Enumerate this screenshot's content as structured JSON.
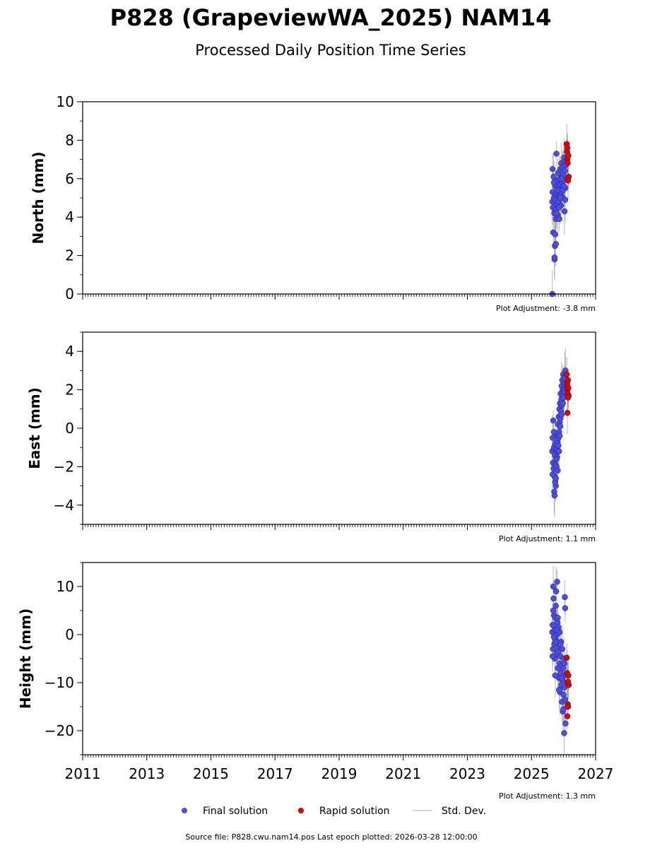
{
  "figure": {
    "title": "P828 (GrapeviewWA_2025) NAM14",
    "subtitle": "Processed Daily Position Time Series",
    "footer": "Source file: P828.cwu.nam14.pos  Last epoch plotted: 2026-03-28 12:00:00"
  },
  "legend": {
    "final_label": "Final solution",
    "rapid_label": "Rapid solution",
    "std_label": "Std. Dev."
  },
  "colors": {
    "final": "#4b4bf0",
    "rapid": "#e00000",
    "std": "#909090"
  },
  "chart_data": [
    {
      "type": "scatter",
      "ylabel": "North (mm)",
      "xlim": [
        2011,
        2027
      ],
      "ylim": [
        0,
        10
      ],
      "x_ticks": [
        2011,
        2013,
        2015,
        2017,
        2019,
        2021,
        2023,
        2025,
        2027
      ],
      "x_tick_labels_shown": false,
      "y_ticks": [
        0,
        2,
        4,
        6,
        8,
        10
      ],
      "y_tick_labels": [
        "0",
        "2",
        "4",
        "6",
        "8",
        "10"
      ],
      "adjustment": "Plot Adjustment: -3.8 mm",
      "series": [
        {
          "name": "Final solution",
          "points": [
            [
              2025.65,
              4.8
            ],
            [
              2025.66,
              5.3
            ],
            [
              2025.67,
              4.5
            ],
            [
              2025.68,
              3.2
            ],
            [
              2025.69,
              6.1
            ],
            [
              2025.7,
              5.0
            ],
            [
              2025.71,
              4.2
            ],
            [
              2025.72,
              1.8
            ],
            [
              2025.73,
              2.5
            ],
            [
              2025.74,
              4.9
            ],
            [
              2025.75,
              5.6
            ],
            [
              2025.76,
              3.9
            ],
            [
              2025.77,
              4.4
            ],
            [
              2025.78,
              7.3
            ],
            [
              2025.79,
              5.2
            ],
            [
              2025.8,
              4.7
            ],
            [
              2025.81,
              5.9
            ],
            [
              2025.82,
              4.1
            ],
            [
              2025.83,
              6.3
            ],
            [
              2025.84,
              5.5
            ],
            [
              2025.85,
              4.8
            ],
            [
              2025.86,
              5.1
            ],
            [
              2025.87,
              3.9
            ],
            [
              2025.88,
              6.0
            ],
            [
              2025.89,
              5.7
            ],
            [
              2025.9,
              6.5
            ],
            [
              2025.91,
              5.2
            ],
            [
              2025.92,
              4.6
            ],
            [
              2025.93,
              6.8
            ],
            [
              2025.94,
              5.3
            ],
            [
              2025.95,
              6.1
            ],
            [
              2025.96,
              5.8
            ],
            [
              2025.97,
              6.6
            ],
            [
              2025.98,
              5.0
            ],
            [
              2025.99,
              6.2
            ],
            [
              2026.0,
              5.9
            ],
            [
              2026.01,
              6.9
            ],
            [
              2026.02,
              7.1
            ],
            [
              2026.03,
              4.3
            ],
            [
              2026.04,
              6.4
            ],
            [
              2026.05,
              5.5
            ],
            [
              2026.06,
              6.7
            ],
            [
              2025.66,
              6.5
            ],
            [
              2025.7,
              5.8
            ],
            [
              2025.74,
              3.1
            ],
            [
              2025.78,
              4.2
            ],
            [
              2025.82,
              5.4
            ],
            [
              2025.86,
              4.5
            ],
            [
              2025.9,
              5.0
            ],
            [
              2025.94,
              6.0
            ],
            [
              2025.98,
              5.4
            ],
            [
              2026.02,
              5.6
            ],
            [
              2026.05,
              4.9
            ],
            [
              2025.65,
              0.0
            ],
            [
              2025.72,
              1.9
            ],
            [
              2025.76,
              2.6
            ]
          ]
        },
        {
          "name": "Rapid solution",
          "points": [
            [
              2026.1,
              7.8
            ],
            [
              2026.11,
              7.4
            ],
            [
              2026.12,
              7.0
            ],
            [
              2026.13,
              6.8
            ],
            [
              2026.14,
              6.0
            ],
            [
              2026.15,
              7.2
            ],
            [
              2026.16,
              6.1
            ],
            [
              2026.12,
              7.6
            ],
            [
              2026.14,
              5.9
            ]
          ]
        }
      ]
    },
    {
      "type": "scatter",
      "ylabel": "East (mm)",
      "xlim": [
        2011,
        2027
      ],
      "ylim": [
        -5,
        5
      ],
      "x_ticks": [
        2011,
        2013,
        2015,
        2017,
        2019,
        2021,
        2023,
        2025,
        2027
      ],
      "x_tick_labels_shown": false,
      "y_ticks": [
        -4,
        -2,
        0,
        2,
        4
      ],
      "y_tick_labels": [
        "−4",
        "−2",
        "0",
        "2",
        "4"
      ],
      "adjustment": "Plot Adjustment: 1.1 mm",
      "series": [
        {
          "name": "Final solution",
          "points": [
            [
              2025.65,
              -1.2
            ],
            [
              2025.66,
              -0.5
            ],
            [
              2025.67,
              -1.8
            ],
            [
              2025.68,
              0.4
            ],
            [
              2025.69,
              -2.1
            ],
            [
              2025.7,
              -1.0
            ],
            [
              2025.71,
              -3.3
            ],
            [
              2025.72,
              -2.5
            ],
            [
              2025.73,
              -1.4
            ],
            [
              2025.74,
              -0.8
            ],
            [
              2025.75,
              -1.9
            ],
            [
              2025.76,
              -3.0
            ],
            [
              2025.77,
              -1.1
            ],
            [
              2025.78,
              -2.0
            ],
            [
              2025.79,
              -0.3
            ],
            [
              2025.8,
              -1.5
            ],
            [
              2025.81,
              -0.7
            ],
            [
              2025.82,
              -1.2
            ],
            [
              2025.83,
              0.2
            ],
            [
              2025.84,
              -0.5
            ],
            [
              2025.85,
              0.6
            ],
            [
              2025.86,
              -0.2
            ],
            [
              2025.87,
              1.0
            ],
            [
              2025.88,
              0.3
            ],
            [
              2025.89,
              1.3
            ],
            [
              2025.9,
              0.5
            ],
            [
              2025.91,
              1.8
            ],
            [
              2025.92,
              0.9
            ],
            [
              2025.93,
              1.5
            ],
            [
              2025.94,
              2.2
            ],
            [
              2025.95,
              1.2
            ],
            [
              2025.96,
              2.5
            ],
            [
              2025.97,
              1.7
            ],
            [
              2025.98,
              2.0
            ],
            [
              2025.99,
              2.8
            ],
            [
              2026.0,
              1.6
            ],
            [
              2026.01,
              2.4
            ],
            [
              2026.02,
              2.0
            ],
            [
              2026.03,
              1.9
            ],
            [
              2026.04,
              2.7
            ],
            [
              2026.05,
              2.3
            ],
            [
              2026.06,
              3.0
            ],
            [
              2025.66,
              -2.4
            ],
            [
              2025.7,
              -0.2
            ],
            [
              2025.74,
              -2.8
            ],
            [
              2025.78,
              -1.6
            ],
            [
              2025.82,
              -2.2
            ],
            [
              2025.86,
              -1.2
            ],
            [
              2025.9,
              0.1
            ],
            [
              2025.94,
              0.7
            ],
            [
              2025.98,
              1.3
            ],
            [
              2025.72,
              -3.5
            ],
            [
              2025.76,
              -2.6
            ],
            [
              2025.84,
              -0.9
            ],
            [
              2025.88,
              -0.4
            ],
            [
              2026.02,
              2.6
            ]
          ]
        },
        {
          "name": "Rapid solution",
          "points": [
            [
              2026.1,
              2.8
            ],
            [
              2026.11,
              2.3
            ],
            [
              2026.12,
              2.0
            ],
            [
              2026.13,
              1.8
            ],
            [
              2026.14,
              2.5
            ],
            [
              2026.15,
              2.1
            ],
            [
              2026.16,
              1.7
            ],
            [
              2026.12,
              0.8
            ],
            [
              2026.14,
              1.6
            ]
          ]
        }
      ]
    },
    {
      "type": "scatter",
      "ylabel": "Height (mm)",
      "xlim": [
        2011,
        2027
      ],
      "ylim": [
        -25,
        15
      ],
      "x_ticks": [
        2011,
        2013,
        2015,
        2017,
        2019,
        2021,
        2023,
        2025,
        2027
      ],
      "x_tick_labels": [
        "2011",
        "2013",
        "2015",
        "2017",
        "2019",
        "2021",
        "2023",
        "2025",
        "2027"
      ],
      "x_tick_labels_shown": true,
      "y_ticks": [
        -20,
        -10,
        0,
        10
      ],
      "y_tick_labels": [
        "−20",
        "−10",
        "0",
        "10"
      ],
      "adjustment": "Plot Adjustment: 1.3 mm",
      "series": [
        {
          "name": "Final solution",
          "points": [
            [
              2025.65,
              0.5
            ],
            [
              2025.66,
              2.0
            ],
            [
              2025.67,
              -3.0
            ],
            [
              2025.68,
              10.0
            ],
            [
              2025.69,
              7.5
            ],
            [
              2025.7,
              4.0
            ],
            [
              2025.71,
              -2.0
            ],
            [
              2025.72,
              1.0
            ],
            [
              2025.73,
              -5.0
            ],
            [
              2025.74,
              3.5
            ],
            [
              2025.75,
              -1.0
            ],
            [
              2025.76,
              6.0
            ],
            [
              2025.77,
              9.0
            ],
            [
              2025.78,
              -4.0
            ],
            [
              2025.79,
              0.0
            ],
            [
              2025.8,
              11.0
            ],
            [
              2025.81,
              2.5
            ],
            [
              2025.82,
              -7.0
            ],
            [
              2025.83,
              -3.5
            ],
            [
              2025.84,
              1.5
            ],
            [
              2025.85,
              -9.0
            ],
            [
              2025.86,
              -2.5
            ],
            [
              2025.87,
              -6.0
            ],
            [
              2025.88,
              0.5
            ],
            [
              2025.89,
              -12.0
            ],
            [
              2025.9,
              -4.5
            ],
            [
              2025.91,
              -8.0
            ],
            [
              2025.92,
              -1.5
            ],
            [
              2025.93,
              -10.5
            ],
            [
              2025.94,
              -6.5
            ],
            [
              2025.95,
              -14.0
            ],
            [
              2025.96,
              -3.0
            ],
            [
              2025.97,
              -9.5
            ],
            [
              2025.98,
              -16.0
            ],
            [
              2025.99,
              -7.0
            ],
            [
              2026.0,
              -12.5
            ],
            [
              2026.01,
              -5.0
            ],
            [
              2026.02,
              -20.5
            ],
            [
              2026.03,
              -11.0
            ],
            [
              2026.04,
              -8.5
            ],
            [
              2026.05,
              -13.5
            ],
            [
              2026.06,
              -18.5
            ],
            [
              2026.04,
              7.8
            ],
            [
              2026.05,
              5.5
            ],
            [
              2025.66,
              -4.5
            ],
            [
              2025.7,
              -0.5
            ],
            [
              2025.74,
              -8.5
            ],
            [
              2025.78,
              1.0
            ],
            [
              2025.82,
              3.5
            ],
            [
              2025.86,
              -11.5
            ],
            [
              2025.9,
              -2.0
            ],
            [
              2025.94,
              -9.0
            ],
            [
              2026.0,
              -15.5
            ],
            [
              2026.03,
              -6.0
            ],
            [
              2025.68,
              5.0
            ],
            [
              2025.76,
              -1.5
            ]
          ]
        },
        {
          "name": "Rapid solution",
          "points": [
            [
              2026.1,
              -4.8
            ],
            [
              2026.11,
              -8.0
            ],
            [
              2026.12,
              -10.0
            ],
            [
              2026.13,
              -14.5
            ],
            [
              2026.14,
              -15.0
            ],
            [
              2026.15,
              -8.5
            ],
            [
              2026.16,
              -10.5
            ],
            [
              2026.12,
              -17.0
            ],
            [
              2026.14,
              -9.8
            ]
          ]
        }
      ]
    }
  ]
}
